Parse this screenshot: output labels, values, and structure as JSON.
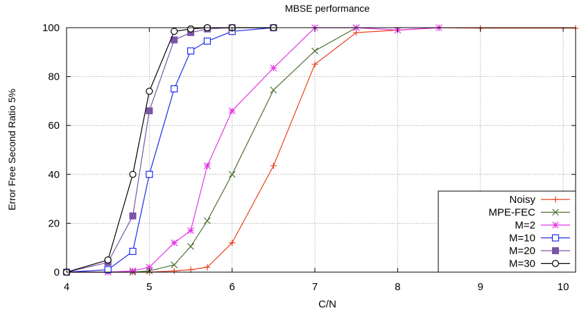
{
  "chart_data": {
    "type": "line",
    "title": "MBSE performance",
    "xlabel": "C/N",
    "ylabel": "Error Free Second Ratio 5%",
    "xlim": [
      4,
      10.15
    ],
    "ylim": [
      0,
      100
    ],
    "xticks": [
      4,
      5,
      6,
      7,
      8,
      9,
      10
    ],
    "yticks": [
      0,
      20,
      40,
      60,
      80,
      100
    ],
    "grid": true,
    "legend_position": "bottom-right",
    "series": [
      {
        "name": "Noisy",
        "color": "#e8401c",
        "marker": "plus",
        "x": [
          4,
          4.5,
          4.8,
          5,
          5.3,
          5.5,
          5.7,
          6,
          6.5,
          7,
          7.5,
          8,
          8.5,
          9,
          10.15
        ],
        "y": [
          0,
          0,
          0,
          0,
          0.5,
          1,
          2,
          12,
          43.5,
          85,
          98,
          99,
          100,
          99.8,
          99.8
        ]
      },
      {
        "name": "MPE-FEC",
        "color": "#4f7033",
        "marker": "cross",
        "x": [
          4,
          4.5,
          4.8,
          5,
          5.3,
          5.5,
          5.7,
          6,
          6.5,
          7,
          7.5
        ],
        "y": [
          0,
          0,
          0,
          0.5,
          3,
          10.5,
          21,
          40,
          74.5,
          90.5,
          100
        ]
      },
      {
        "name": "M=2",
        "color": "#e233e5",
        "marker": "star",
        "x": [
          4,
          4.5,
          4.8,
          5,
          5.3,
          5.5,
          5.7,
          6,
          6.5,
          7,
          7.5,
          8,
          8.5
        ],
        "y": [
          0,
          0,
          0.5,
          2,
          12,
          17,
          43.5,
          66,
          83.5,
          100,
          100,
          99,
          100
        ]
      },
      {
        "name": "M=10",
        "color": "#1a2ce8",
        "marker": "square-open",
        "x": [
          4,
          4.5,
          4.8,
          5,
          5.3,
          5.5,
          5.7,
          6,
          6.5
        ],
        "y": [
          0,
          1,
          8.5,
          40,
          75,
          90.5,
          94.5,
          98.5,
          100
        ]
      },
      {
        "name": "M=20",
        "color": "#7a55a8",
        "marker": "square-filled",
        "x": [
          4,
          4.5,
          4.8,
          5,
          5.3,
          5.5,
          5.7,
          6,
          6.5
        ],
        "y": [
          0,
          4,
          23,
          66,
          95,
          98,
          99.5,
          100,
          100
        ]
      },
      {
        "name": "M=30",
        "color": "#000000",
        "marker": "circle-open",
        "x": [
          4,
          4.5,
          4.8,
          5,
          5.3,
          5.5,
          5.7,
          6,
          6.5
        ],
        "y": [
          0,
          5,
          40,
          74,
          98.5,
          99.5,
          100,
          100,
          100
        ]
      }
    ]
  }
}
